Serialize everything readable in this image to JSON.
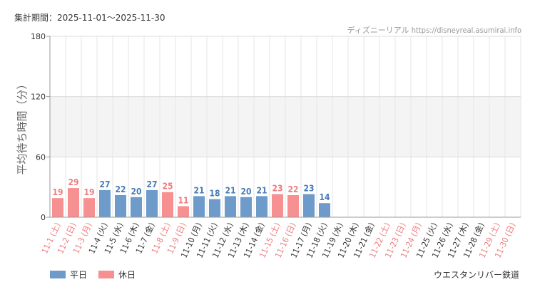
{
  "header": {
    "period": "集計期間：2025-11-01～2025-11-30",
    "source": "ディズニーリアル https://disneyreal.asumirai.info"
  },
  "footer": {
    "attraction": "ウエスタンリバー鉄道"
  },
  "legend": {
    "weekday_label": "平日",
    "holiday_label": "休日"
  },
  "colors": {
    "weekday": "#6e9bc9",
    "holiday": "#f79091",
    "weekday_text": "#4a7cb5",
    "holiday_text": "#ee7c7e",
    "band": "#f4f4f4",
    "grid": "#e6e6e6"
  },
  "chart_data": {
    "type": "bar",
    "ylabel": "平均待ち時間（分）",
    "ylim": [
      0,
      180
    ],
    "yticks": [
      0,
      60,
      120,
      180
    ],
    "shaded_band": [
      60,
      120
    ],
    "grid": true,
    "legend_position": "bottom-left",
    "categories": [
      "11-1 (土)",
      "11-2 (日)",
      "11-3 (月)",
      "11-4 (火)",
      "11-5 (水)",
      "11-6 (木)",
      "11-7 (金)",
      "11-8 (土)",
      "11-9 (日)",
      "11-10 (月)",
      "11-11 (火)",
      "11-12 (水)",
      "11-13 (木)",
      "11-14 (金)",
      "11-15 (土)",
      "11-16 (日)",
      "11-17 (月)",
      "11-18 (火)",
      "11-19 (水)",
      "11-20 (木)",
      "11-21 (金)",
      "11-22 (土)",
      "11-23 (日)",
      "11-24 (月)",
      "11-25 (火)",
      "11-26 (水)",
      "11-27 (木)",
      "11-28 (金)",
      "11-29 (土)",
      "11-30 (日)"
    ],
    "values": [
      19,
      29,
      19,
      27,
      22,
      20,
      27,
      25,
      11,
      21,
      18,
      21,
      20,
      21,
      23,
      22,
      23,
      14,
      null,
      null,
      null,
      null,
      null,
      null,
      null,
      null,
      null,
      null,
      null,
      null
    ],
    "holiday": [
      true,
      true,
      true,
      false,
      false,
      false,
      false,
      true,
      true,
      false,
      false,
      false,
      false,
      false,
      true,
      true,
      false,
      false,
      false,
      false,
      false,
      true,
      true,
      true,
      false,
      false,
      false,
      false,
      true,
      true
    ]
  }
}
